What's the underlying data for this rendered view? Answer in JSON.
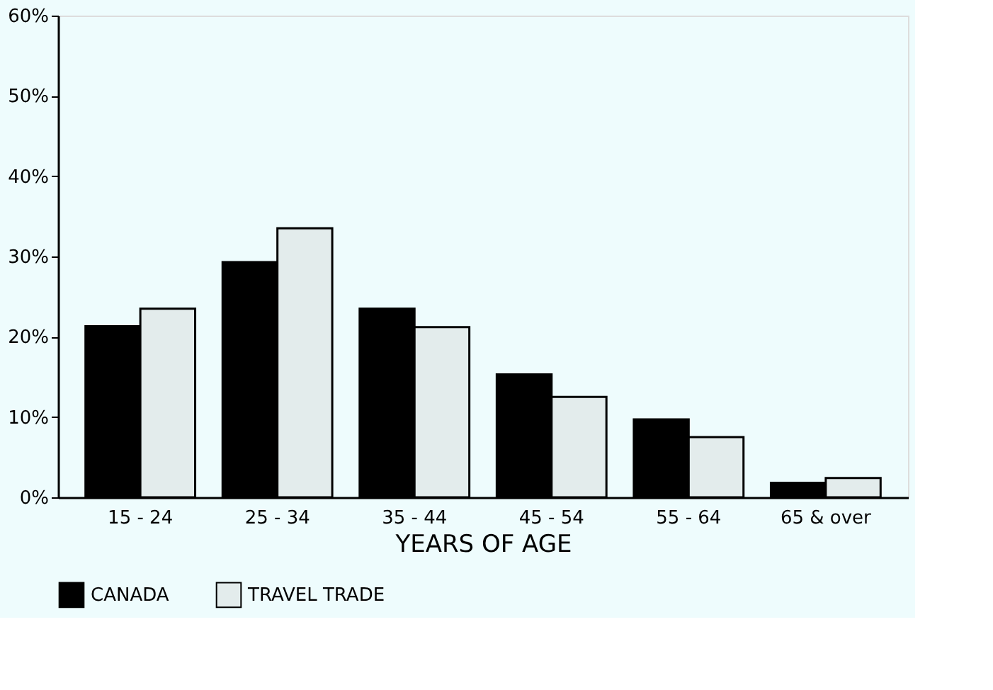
{
  "chart_data": {
    "type": "bar",
    "xlabel": "YEARS OF AGE",
    "categories": [
      "15 - 24",
      "25 - 34",
      "35 - 44",
      "45 - 54",
      "55 - 64",
      "65 & over"
    ],
    "series": [
      {
        "name": "CANADA",
        "color": "#000000",
        "values": [
          21.3,
          29.3,
          23.5,
          15.3,
          9.7,
          1.8
        ]
      },
      {
        "name": "TRAVEL TRADE",
        "color": "#e3ecec",
        "values": [
          23.5,
          33.5,
          21.2,
          12.5,
          7.5,
          2.4
        ]
      }
    ],
    "ylim": [
      0,
      60
    ],
    "yticks": [
      {
        "value": 0,
        "label": "0%"
      },
      {
        "value": 10,
        "label": "10%"
      },
      {
        "value": 20,
        "label": "20%"
      },
      {
        "value": 30,
        "label": "30%"
      },
      {
        "value": 40,
        "label": "40%"
      },
      {
        "value": 50,
        "label": "50%"
      },
      {
        "value": 60,
        "label": "60%"
      }
    ],
    "grid": false,
    "legend": "bottom"
  }
}
